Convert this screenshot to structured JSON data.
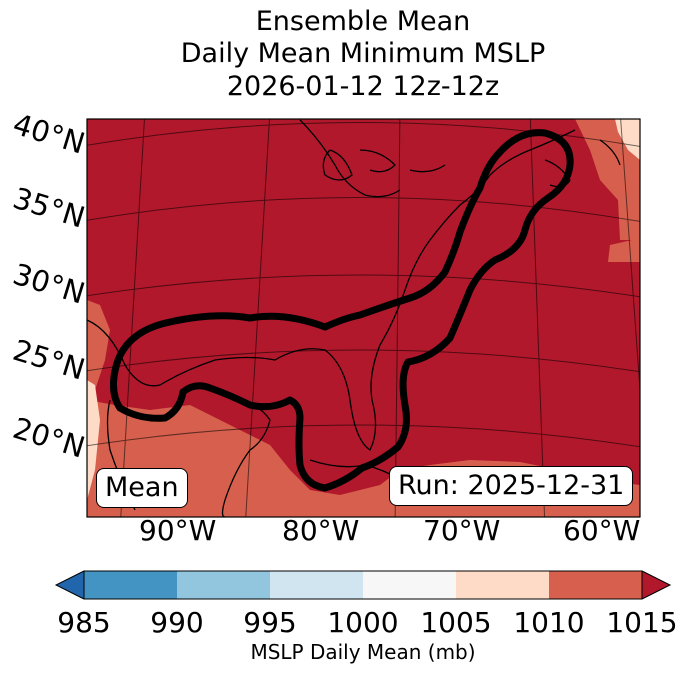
{
  "title": {
    "line1": "Ensemble Mean",
    "line2": "Daily Mean Minimum MSLP",
    "line3": "2026-01-12 12z-12z"
  },
  "map": {
    "latitude_labels": [
      "40°N",
      "35°N",
      "30°N",
      "25°N",
      "20°N"
    ],
    "longitude_labels": [
      "90°W",
      "80°W",
      "70°W",
      "60°W"
    ],
    "mean_box": "Mean",
    "run_box": "Run: 2025-12-31",
    "colors": {
      "dark_red": "#b2182b",
      "mid_red": "#d6604d",
      "light_peach": "#fddbc7",
      "contour": "#000000"
    }
  },
  "colorbar": {
    "ticks": [
      "985",
      "990",
      "995",
      "1000",
      "1005",
      "1010",
      "1015"
    ],
    "label": "MSLP Daily Mean (mb)",
    "colors": [
      "#2166ac",
      "#4393c3",
      "#92c5de",
      "#d1e5f0",
      "#f7f7f7",
      "#fddbc7",
      "#d6604d",
      "#b2182b"
    ]
  }
}
